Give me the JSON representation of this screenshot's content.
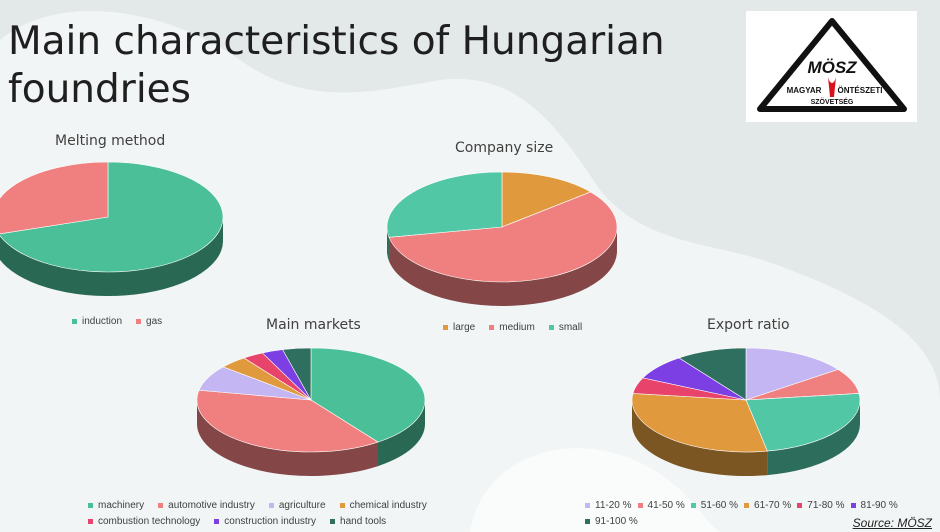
{
  "slide": {
    "title": "Main characteristics of Hungarian foundries",
    "source": "Source: MÖSZ"
  },
  "logo": {
    "line1": "MÖSZ",
    "line2_left": "MAGYAR",
    "line2_right": "ÖNTÉSZETI",
    "line3": "SZÖVETSÉG"
  },
  "chart_data": [
    {
      "id": "melting",
      "type": "pie",
      "title": "Melting method",
      "categories": [
        "induction",
        "gas"
      ],
      "values": [
        70,
        30
      ],
      "colors": [
        "#4bbf98",
        "#f08080"
      ],
      "legend": "bottom"
    },
    {
      "id": "size",
      "type": "pie",
      "title": "Company size",
      "categories": [
        "large",
        "medium",
        "small"
      ],
      "values": [
        14,
        58,
        28
      ],
      "colors": [
        "#e09a3d",
        "#f08080",
        "#52c7a5"
      ],
      "legend": "bottom"
    },
    {
      "id": "markets",
      "type": "pie",
      "title": "Main markets",
      "categories": [
        "machinery",
        "automotive industry",
        "agriculture",
        "chemical industry",
        "combustion technology",
        "construction industry",
        "hand tools"
      ],
      "values": [
        40,
        38,
        8,
        4,
        3,
        3,
        4
      ],
      "colors": [
        "#4bbf98",
        "#f08080",
        "#c3b6f2",
        "#e09a3d",
        "#e8436b",
        "#7b3fe4",
        "#2f6f5f"
      ],
      "legend": "bottom"
    },
    {
      "id": "export",
      "type": "pie",
      "title": "Export ratio",
      "categories": [
        "11-20 %",
        "41-50 %",
        "51-60 %",
        "61-70 %",
        "71-80 %",
        "81-90 %",
        "91-100 %"
      ],
      "values": [
        15,
        8,
        24,
        30,
        5,
        8,
        10
      ],
      "colors": [
        "#c3b6f2",
        "#f08080",
        "#52c7a5",
        "#e09a3d",
        "#e8436b",
        "#7b3fe4",
        "#2f6f5f"
      ],
      "legend": "bottom"
    }
  ]
}
